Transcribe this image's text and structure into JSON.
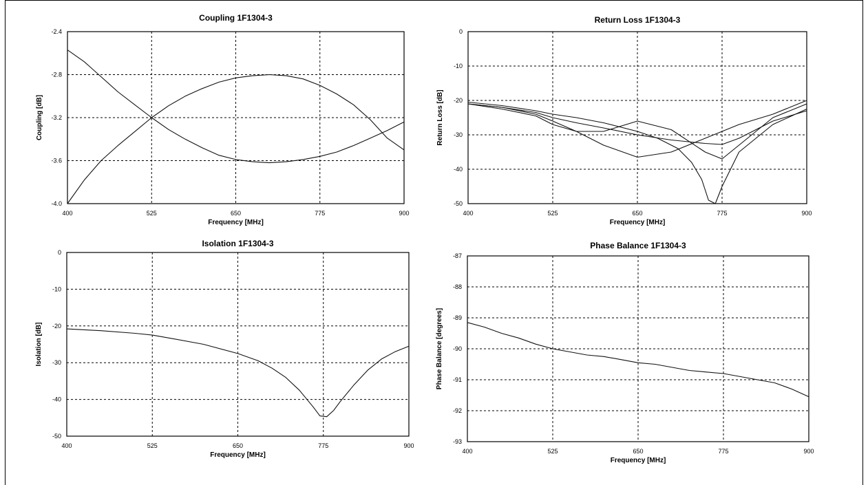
{
  "colors": {
    "line": "#111111",
    "grid": "#000000",
    "axis": "#000000"
  },
  "chart_data": [
    {
      "type": "line",
      "title": "Coupling 1F1304-3",
      "xlabel": "Frequency [MHz]",
      "ylabel": "Coupling [dB]",
      "xlim": [
        400,
        900
      ],
      "ylim": [
        -4.0,
        -2.4
      ],
      "xticks": [
        "400",
        "525",
        "650",
        "775",
        "900"
      ],
      "yticks": [
        "-2.4",
        "-2.8",
        "-3.2",
        "-3.6",
        "-4.0"
      ],
      "grid": true,
      "series": [
        {
          "x": [
            400,
            425,
            450,
            475,
            500,
            525,
            550,
            575,
            600,
            625,
            650,
            675,
            700,
            725,
            750,
            775,
            800,
            825,
            850,
            875,
            900
          ],
          "y": [
            -4.0,
            -3.78,
            -3.6,
            -3.46,
            -3.33,
            -3.2,
            -3.09,
            -3.0,
            -2.93,
            -2.87,
            -2.83,
            -2.81,
            -2.8,
            -2.81,
            -2.84,
            -2.9,
            -2.98,
            -3.08,
            -3.22,
            -3.39,
            -3.5
          ]
        },
        {
          "x": [
            400,
            425,
            450,
            475,
            500,
            525,
            550,
            575,
            600,
            625,
            650,
            675,
            700,
            725,
            750,
            775,
            800,
            825,
            850,
            875,
            900
          ],
          "y": [
            -2.57,
            -2.68,
            -2.82,
            -2.96,
            -3.08,
            -3.2,
            -3.31,
            -3.4,
            -3.48,
            -3.55,
            -3.59,
            -3.61,
            -3.62,
            -3.61,
            -3.59,
            -3.56,
            -3.52,
            -3.46,
            -3.39,
            -3.32,
            -3.24
          ]
        }
      ]
    },
    {
      "type": "line",
      "title": "Return Loss 1F1304-3",
      "xlabel": "Frequency [MHz]",
      "ylabel": "Return Loss [dB]",
      "xlim": [
        400,
        900
      ],
      "ylim": [
        -50,
        0
      ],
      "xticks": [
        "400",
        "525",
        "650",
        "775",
        "900"
      ],
      "yticks": [
        "0",
        "-10",
        "-20",
        "-30",
        "-40",
        "-50"
      ],
      "grid": true,
      "series": [
        {
          "x": [
            400,
            450,
            500,
            525,
            560,
            600,
            650,
            680,
            710,
            730,
            745,
            755,
            765,
            775,
            800,
            850,
            900
          ],
          "y": [
            -20.5,
            -21.5,
            -23,
            -24,
            -25,
            -26.5,
            -29,
            -31,
            -34,
            -38,
            -43,
            -49,
            -50,
            -45,
            -35,
            -27,
            -22.5
          ]
        },
        {
          "x": [
            400,
            450,
            500,
            525,
            560,
            600,
            650,
            700,
            750,
            775,
            800,
            850,
            900
          ],
          "y": [
            -21,
            -22,
            -24,
            -26,
            -29,
            -33,
            -36.5,
            -35,
            -31,
            -29,
            -27,
            -24,
            -20
          ]
        },
        {
          "x": [
            400,
            450,
            500,
            525,
            560,
            600,
            650,
            700,
            750,
            775,
            800,
            850,
            900
          ],
          "y": [
            -21,
            -22.5,
            -24.5,
            -27,
            -29,
            -29,
            -26,
            -28.5,
            -35,
            -37,
            -33,
            -25,
            -21
          ]
        },
        {
          "x": [
            400,
            450,
            500,
            525,
            560,
            600,
            650,
            700,
            750,
            775,
            800,
            850,
            900
          ],
          "y": [
            -21,
            -22,
            -23.5,
            -25,
            -26.5,
            -28,
            -30,
            -31.5,
            -32.5,
            -32.8,
            -31,
            -26,
            -23
          ]
        }
      ]
    },
    {
      "type": "line",
      "title": "Isolation 1F1304-3",
      "xlabel": "Frequency [MHz]",
      "ylabel": "Isolation [dB]",
      "xlim": [
        400,
        900
      ],
      "ylim": [
        -50,
        0
      ],
      "xticks": [
        "400",
        "525",
        "650",
        "775",
        "900"
      ],
      "yticks": [
        "0",
        "-10",
        "-20",
        "-30",
        "-40",
        "-50"
      ],
      "grid": true,
      "series": [
        {
          "x": [
            400,
            450,
            500,
            525,
            550,
            600,
            650,
            680,
            700,
            720,
            740,
            760,
            770,
            780,
            790,
            800,
            820,
            840,
            860,
            880,
            900
          ],
          "y": [
            -20.8,
            -21.3,
            -22,
            -22.5,
            -23.3,
            -25,
            -27.5,
            -29.5,
            -31.5,
            -34,
            -37.5,
            -42,
            -44.5,
            -44.7,
            -43,
            -40.5,
            -36,
            -32,
            -29,
            -27,
            -25.5
          ]
        }
      ]
    },
    {
      "type": "line",
      "title": "Phase Balance 1F1304-3",
      "xlabel": "Frequency [MHz]",
      "ylabel": "Phase Balance [degrees]",
      "xlim": [
        400,
        900
      ],
      "ylim": [
        -93,
        -87
      ],
      "xticks": [
        "400",
        "525",
        "650",
        "775",
        "900"
      ],
      "yticks": [
        "-87",
        "-88",
        "-89",
        "-90",
        "-91",
        "-92",
        "-93"
      ],
      "grid": true,
      "series": [
        {
          "x": [
            400,
            425,
            450,
            475,
            500,
            525,
            550,
            575,
            600,
            625,
            650,
            675,
            700,
            725,
            750,
            775,
            800,
            825,
            850,
            875,
            900
          ],
          "y": [
            -89.15,
            -89.3,
            -89.5,
            -89.65,
            -89.85,
            -90.0,
            -90.1,
            -90.2,
            -90.25,
            -90.35,
            -90.45,
            -90.5,
            -90.6,
            -90.7,
            -90.75,
            -90.8,
            -90.9,
            -91.0,
            -91.1,
            -91.3,
            -91.55
          ]
        }
      ]
    }
  ]
}
